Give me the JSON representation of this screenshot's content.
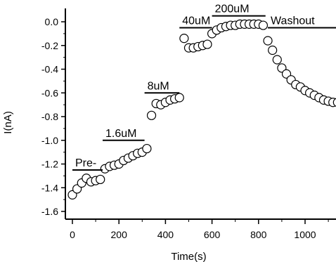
{
  "chart_data": {
    "type": "scatter",
    "title": "",
    "xlabel": "Time(s)",
    "ylabel": "I(nA)",
    "xlim": [
      -20,
      1140
    ],
    "ylim": [
      -1.65,
      0.07
    ],
    "xticks": [
      0,
      200,
      400,
      600,
      800,
      1000
    ],
    "yticks": [
      0.0,
      -0.2,
      -0.4,
      -0.6,
      -0.8,
      -1.0,
      -1.2,
      -1.4,
      -1.6
    ],
    "ytick_labels": [
      "0.0",
      "-0.2",
      "-0.4",
      "-0.6",
      "-0.8",
      "-1.0",
      "-1.2",
      "-1.4",
      "-1.6"
    ],
    "grid": false,
    "marker": "open-circle",
    "colors": {
      "axis": "#000000",
      "marker_stroke": "#000000",
      "marker_fill": "#ffffff"
    },
    "annotations": [
      {
        "label": "Pre-",
        "x_start": 0,
        "x_end": 130,
        "y": -1.25
      },
      {
        "label": "1.6uM",
        "x_start": 130,
        "x_end": 310,
        "y": -1.0
      },
      {
        "label": "8uM",
        "x_start": 310,
        "x_end": 460,
        "y": -0.6
      },
      {
        "label": "40uM",
        "x_start": 460,
        "x_end": 600,
        "y": -0.05
      },
      {
        "label": "200uM",
        "x_start": 600,
        "x_end": 830,
        "y": 0.05
      },
      {
        "label": "Washout",
        "x_start": 840,
        "x_end": 1140,
        "y": -0.05
      }
    ],
    "x": [
      0,
      20,
      40,
      60,
      80,
      100,
      120,
      140,
      160,
      180,
      200,
      220,
      240,
      260,
      280,
      300,
      320,
      340,
      360,
      380,
      400,
      420,
      440,
      460,
      480,
      500,
      520,
      540,
      560,
      580,
      600,
      620,
      640,
      660,
      680,
      700,
      720,
      740,
      760,
      780,
      800,
      820,
      840,
      860,
      880,
      900,
      920,
      940,
      960,
      980,
      1000,
      1020,
      1040,
      1060,
      1080,
      1100,
      1120,
      1140
    ],
    "y": [
      -1.46,
      -1.41,
      -1.36,
      -1.32,
      -1.35,
      -1.34,
      -1.33,
      -1.24,
      -1.22,
      -1.21,
      -1.2,
      -1.17,
      -1.15,
      -1.13,
      -1.11,
      -1.1,
      -1.07,
      -0.79,
      -0.69,
      -0.7,
      -0.68,
      -0.66,
      -0.65,
      -0.64,
      -0.14,
      -0.22,
      -0.22,
      -0.21,
      -0.2,
      -0.19,
      -0.1,
      -0.07,
      -0.05,
      -0.04,
      -0.03,
      -0.03,
      -0.02,
      -0.02,
      -0.02,
      -0.02,
      -0.02,
      -0.03,
      -0.16,
      -0.24,
      -0.32,
      -0.39,
      -0.44,
      -0.49,
      -0.53,
      -0.55,
      -0.58,
      -0.6,
      -0.62,
      -0.64,
      -0.66,
      -0.67,
      -0.68,
      -0.68
    ]
  }
}
